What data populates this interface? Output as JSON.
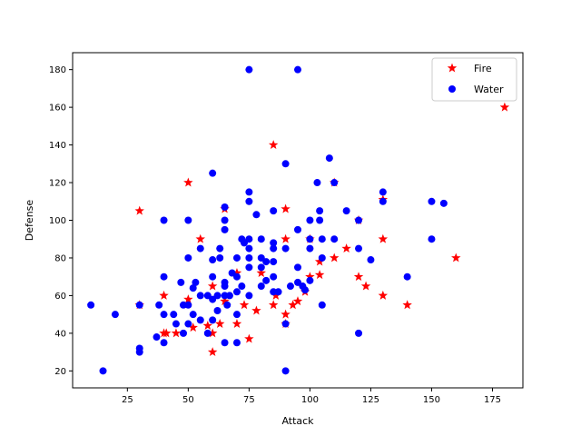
{
  "chart_data": {
    "type": "scatter",
    "xlabel": "Attack",
    "ylabel": "Defense",
    "xlim": [
      2.5,
      187.5
    ],
    "ylim": [
      11,
      189
    ],
    "xticks": [
      25,
      50,
      75,
      100,
      125,
      150,
      175
    ],
    "yticks": [
      20,
      40,
      60,
      80,
      100,
      120,
      140,
      160,
      180
    ],
    "grid": false,
    "legend": {
      "position": "top-right"
    },
    "series": [
      {
        "name": "Fire",
        "color": "#ff0000",
        "marker": "star",
        "points": [
          [
            180,
            160
          ],
          [
            85,
            140
          ],
          [
            50,
            120
          ],
          [
            110,
            120
          ],
          [
            30,
            105
          ],
          [
            90,
            106
          ],
          [
            65,
            106
          ],
          [
            120,
            100
          ],
          [
            130,
            111
          ],
          [
            55,
            90
          ],
          [
            90,
            90
          ],
          [
            100,
            90
          ],
          [
            130,
            90
          ],
          [
            70,
            72
          ],
          [
            80,
            72
          ],
          [
            115,
            85
          ],
          [
            110,
            80
          ],
          [
            104,
            78
          ],
          [
            100,
            70
          ],
          [
            104,
            71
          ],
          [
            120,
            70
          ],
          [
            123,
            65
          ],
          [
            160,
            80
          ],
          [
            130,
            60
          ],
          [
            140,
            55
          ],
          [
            95,
            57
          ],
          [
            93,
            55
          ],
          [
            98,
            62
          ],
          [
            85,
            55
          ],
          [
            86,
            60
          ],
          [
            90,
            50
          ],
          [
            90,
            45
          ],
          [
            78,
            52
          ],
          [
            73,
            55
          ],
          [
            75,
            37
          ],
          [
            70,
            45
          ],
          [
            63,
            45
          ],
          [
            65,
            57
          ],
          [
            60,
            65
          ],
          [
            58,
            44
          ],
          [
            60,
            40
          ],
          [
            60,
            30
          ],
          [
            52,
            43
          ],
          [
            50,
            58
          ],
          [
            45,
            40
          ],
          [
            40,
            40
          ],
          [
            41,
            40
          ],
          [
            40,
            60
          ],
          [
            30,
            55
          ]
        ]
      },
      {
        "name": "Water",
        "color": "#0000ff",
        "marker": "circle",
        "points": [
          [
            75,
            180
          ],
          [
            95,
            180
          ],
          [
            60,
            125
          ],
          [
            65,
            107
          ],
          [
            65,
            100
          ],
          [
            65,
            95
          ],
          [
            75,
            115
          ],
          [
            75,
            110
          ],
          [
            85,
            105
          ],
          [
            90,
            130
          ],
          [
            103,
            120
          ],
          [
            110,
            120
          ],
          [
            108,
            133
          ],
          [
            100,
            100
          ],
          [
            104,
            105
          ],
          [
            104,
            100
          ],
          [
            115,
            105
          ],
          [
            120,
            100
          ],
          [
            130,
            115
          ],
          [
            130,
            110
          ],
          [
            150,
            110
          ],
          [
            155,
            109
          ],
          [
            150,
            90
          ],
          [
            100,
            90
          ],
          [
            105,
            90
          ],
          [
            110,
            90
          ],
          [
            120,
            85
          ],
          [
            125,
            79
          ],
          [
            140,
            70
          ],
          [
            120,
            40
          ],
          [
            100,
            85
          ],
          [
            105,
            80
          ],
          [
            95,
            95
          ],
          [
            90,
            85
          ],
          [
            85,
            88
          ],
          [
            85,
            85
          ],
          [
            80,
            90
          ],
          [
            78,
            103
          ],
          [
            75,
            90
          ],
          [
            72,
            90
          ],
          [
            73,
            88
          ],
          [
            75,
            85
          ],
          [
            70,
            80
          ],
          [
            75,
            80
          ],
          [
            80,
            80
          ],
          [
            82,
            78
          ],
          [
            85,
            78
          ],
          [
            85,
            70
          ],
          [
            80,
            75
          ],
          [
            75,
            75
          ],
          [
            70,
            70
          ],
          [
            68,
            72
          ],
          [
            65,
            67
          ],
          [
            65,
            65
          ],
          [
            62,
            60
          ],
          [
            60,
            58
          ],
          [
            58,
            60
          ],
          [
            60,
            70
          ],
          [
            60,
            79
          ],
          [
            63,
            80
          ],
          [
            63,
            85
          ],
          [
            55,
            85
          ],
          [
            50,
            80
          ],
          [
            50,
            100
          ],
          [
            40,
            100
          ],
          [
            40,
            70
          ],
          [
            38,
            55
          ],
          [
            30,
            55
          ],
          [
            20,
            50
          ],
          [
            10,
            55
          ],
          [
            15,
            20
          ],
          [
            30,
            32
          ],
          [
            30,
            30
          ],
          [
            37,
            38
          ],
          [
            40,
            35
          ],
          [
            40,
            50
          ],
          [
            44,
            50
          ],
          [
            45,
            45
          ],
          [
            48,
            55
          ],
          [
            48,
            40
          ],
          [
            50,
            45
          ],
          [
            50,
            55
          ],
          [
            52,
            50
          ],
          [
            52,
            64
          ],
          [
            53,
            67
          ],
          [
            55,
            60
          ],
          [
            55,
            47
          ],
          [
            58,
            40
          ],
          [
            60,
            47
          ],
          [
            62,
            52
          ],
          [
            65,
            35
          ],
          [
            65,
            60
          ],
          [
            66,
            55
          ],
          [
            67,
            60
          ],
          [
            70,
            35
          ],
          [
            70,
            50
          ],
          [
            70,
            62
          ],
          [
            72,
            65
          ],
          [
            75,
            60
          ],
          [
            80,
            65
          ],
          [
            82,
            68
          ],
          [
            85,
            62
          ],
          [
            87,
            62
          ],
          [
            90,
            45
          ],
          [
            90,
            20
          ],
          [
            92,
            65
          ],
          [
            95,
            75
          ],
          [
            95,
            67
          ],
          [
            97,
            65
          ],
          [
            98,
            63
          ],
          [
            100,
            68
          ],
          [
            105,
            55
          ],
          [
            47,
            67
          ]
        ]
      }
    ]
  }
}
